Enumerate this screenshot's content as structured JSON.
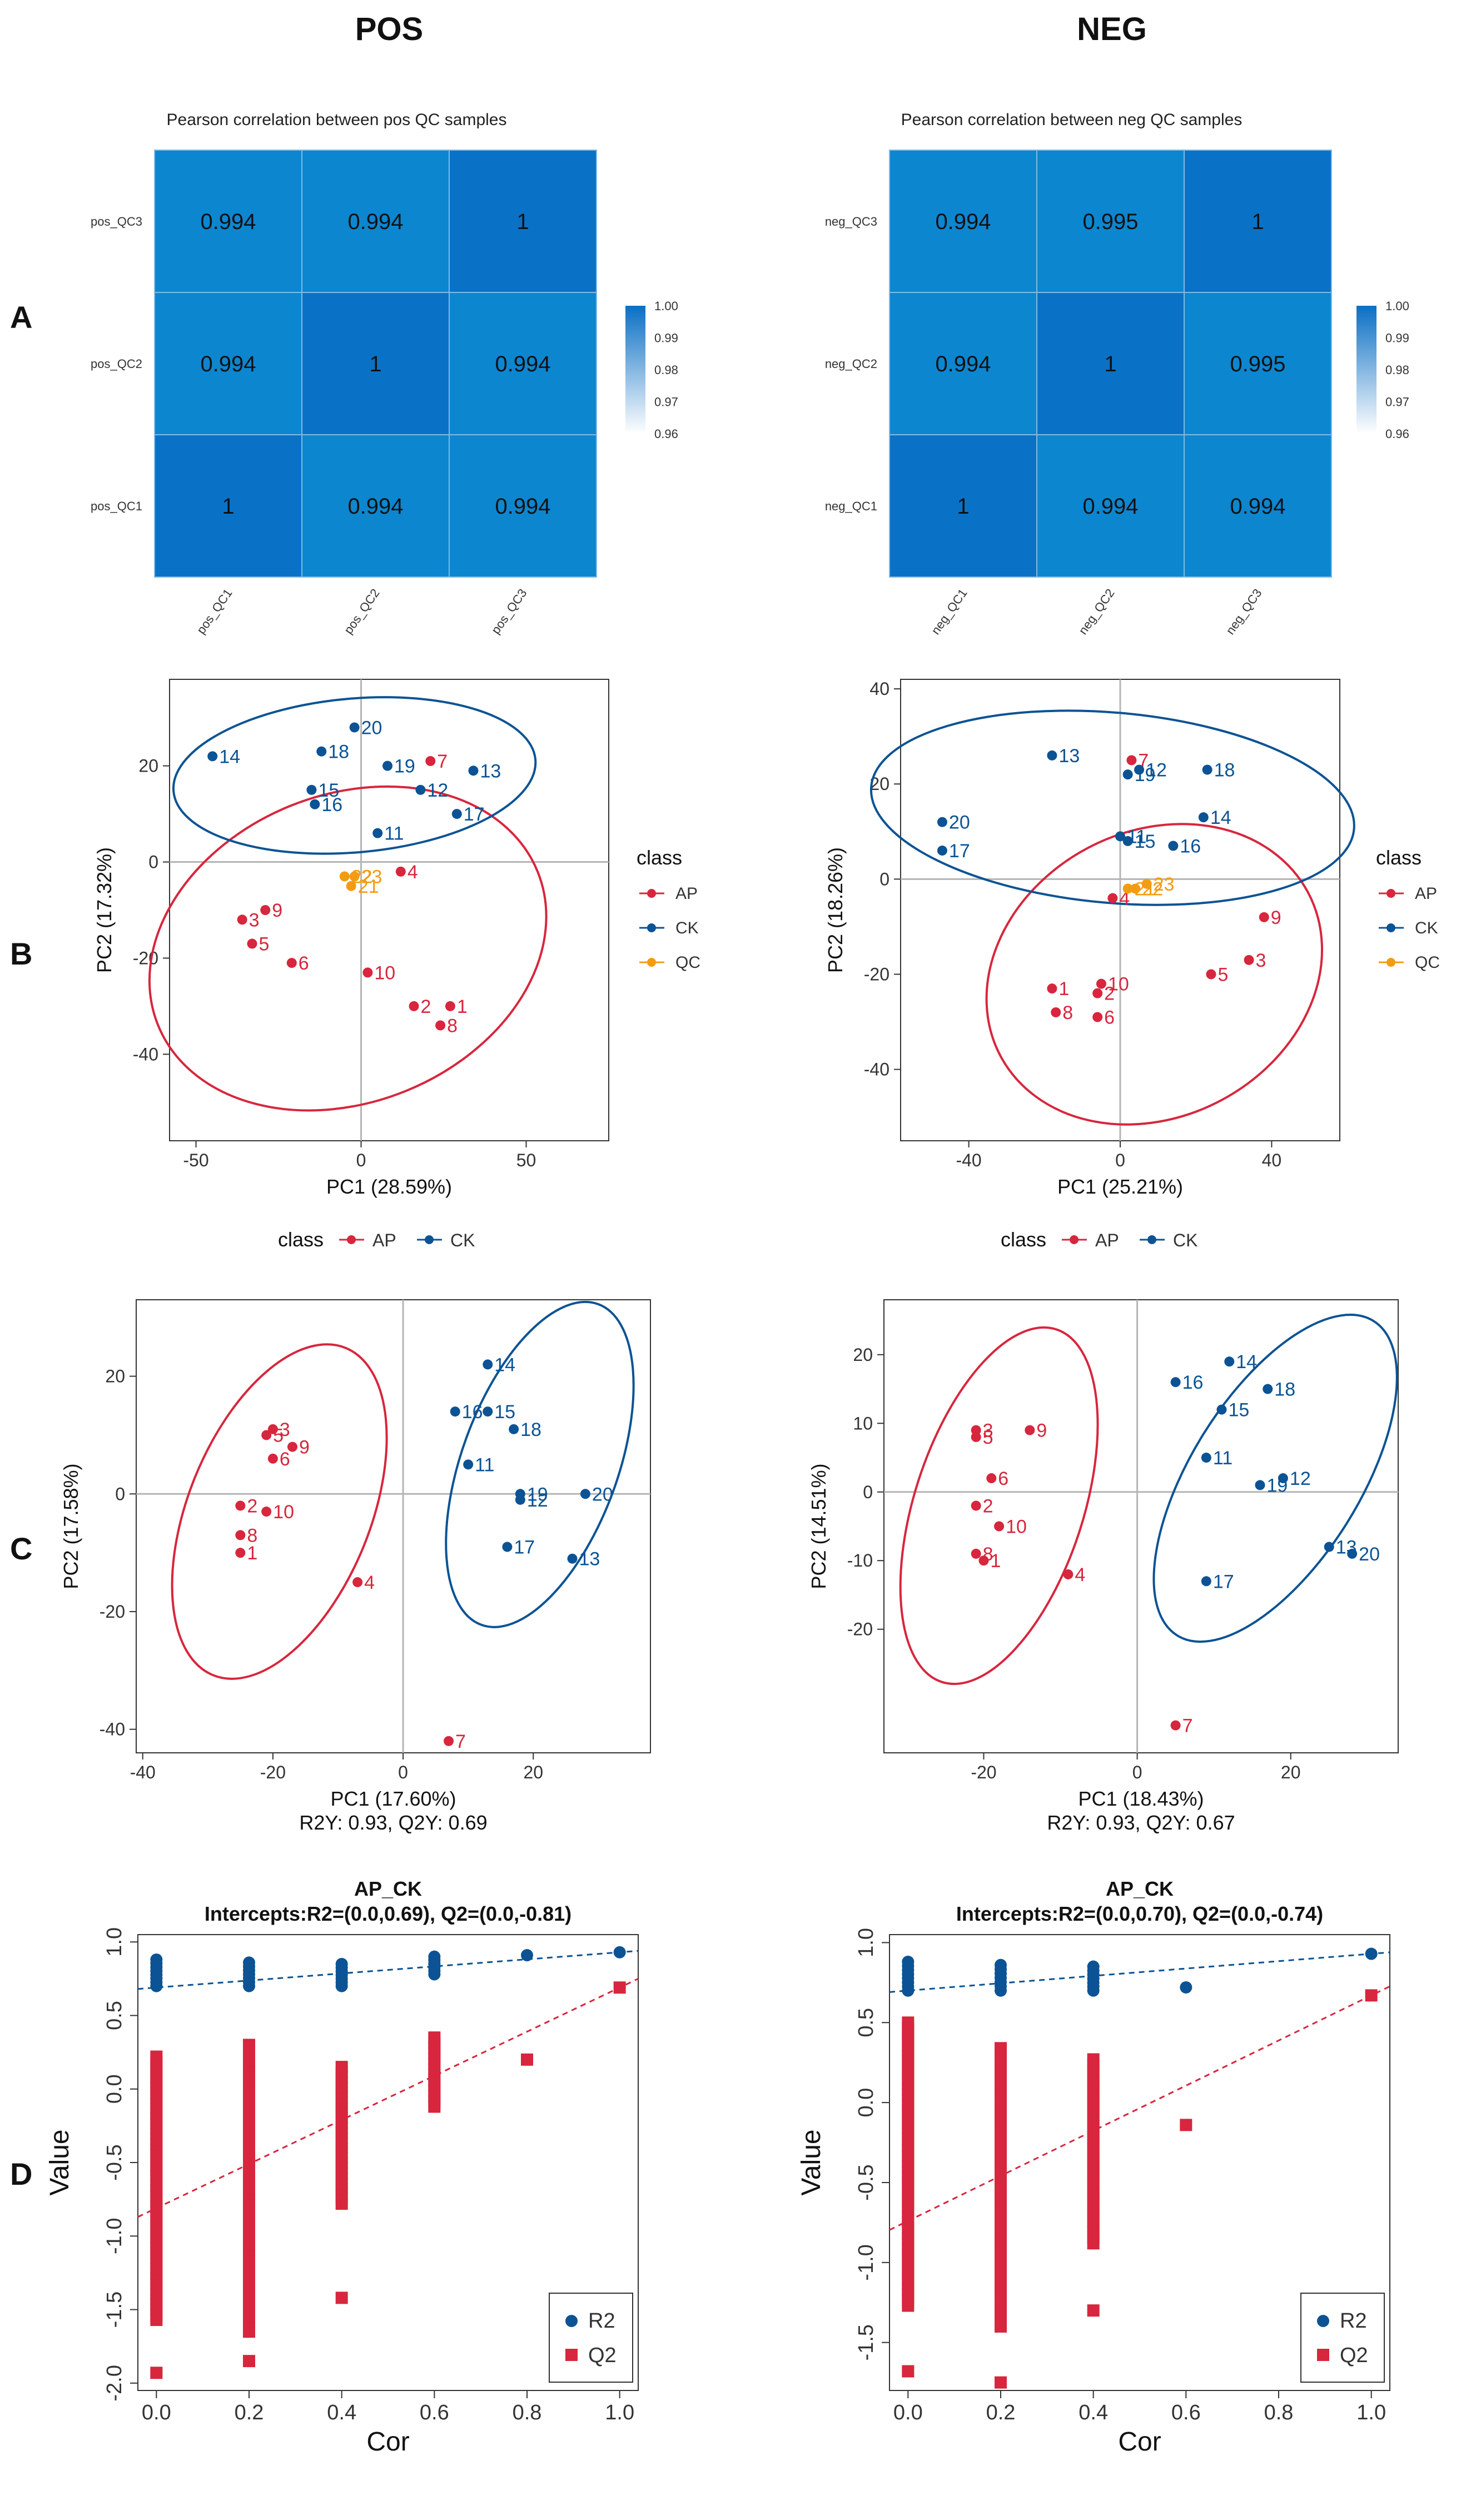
{
  "headers": {
    "pos": "POS",
    "neg": "NEG"
  },
  "panel_letters": {
    "a": "A",
    "b": "B",
    "c": "C",
    "d": "D"
  },
  "colors": {
    "ap": "#d7263d",
    "ck": "#0b5394",
    "qc": "#f39c12",
    "heat_low": "#ffffff",
    "heat_high": "#0a6fc4"
  },
  "chart_data": [
    {
      "type": "heatmap",
      "id": "pos_heatmap",
      "title": "Pearson correlation between pos QC samples",
      "rows": [
        "pos_QC3",
        "pos_QC2",
        "pos_QC1"
      ],
      "columns": [
        "pos_QC1",
        "pos_QC2",
        "pos_QC3"
      ],
      "values": [
        [
          "0.994",
          "0.994",
          "1"
        ],
        [
          "0.994",
          "1",
          "0.994"
        ],
        [
          "1",
          "0.994",
          "0.994"
        ]
      ],
      "legend_ticks": [
        "1.00",
        "0.99",
        "0.98",
        "0.97",
        "0.96"
      ],
      "legend_range": [
        0.96,
        1.0
      ]
    },
    {
      "type": "heatmap",
      "id": "neg_heatmap",
      "title": "Pearson correlation between neg QC samples",
      "rows": [
        "neg_QC3",
        "neg_QC2",
        "neg_QC1"
      ],
      "columns": [
        "neg_QC1",
        "neg_QC2",
        "neg_QC3"
      ],
      "values": [
        [
          "0.994",
          "0.995",
          "1"
        ],
        [
          "0.994",
          "1",
          "0.995"
        ],
        [
          "1",
          "0.994",
          "0.994"
        ]
      ],
      "legend_ticks": [
        "1.00",
        "0.99",
        "0.98",
        "0.97",
        "0.96"
      ],
      "legend_range": [
        0.96,
        1.0
      ]
    },
    {
      "type": "scatter",
      "id": "pos_pca",
      "xlabel": "PC1 (28.59%)",
      "ylabel": "PC2 (17.32%)",
      "xlim": [
        -58,
        75
      ],
      "ylim": [
        -58,
        38
      ],
      "xticks": [
        -50,
        0,
        50
      ],
      "yticks": [
        -40,
        -20,
        0,
        20
      ],
      "legend": {
        "title": "class",
        "entries": [
          "AP",
          "CK",
          "QC"
        ]
      },
      "series": [
        {
          "name": "AP",
          "points": [
            [
              27,
              -30,
              "1"
            ],
            [
              16,
              -30,
              "2"
            ],
            [
              -36,
              -12,
              "3"
            ],
            [
              12,
              -2,
              "4"
            ],
            [
              -33,
              -17,
              "5"
            ],
            [
              -21,
              -21,
              "6"
            ],
            [
              21,
              21,
              "7"
            ],
            [
              24,
              -34,
              "8"
            ],
            [
              -29,
              -10,
              "9"
            ],
            [
              2,
              -23,
              "10"
            ]
          ]
        },
        {
          "name": "CK",
          "points": [
            [
              5,
              6,
              "11"
            ],
            [
              18,
              15,
              "12"
            ],
            [
              34,
              19,
              "13"
            ],
            [
              -45,
              22,
              "14"
            ],
            [
              -15,
              15,
              "15"
            ],
            [
              -14,
              12,
              "16"
            ],
            [
              29,
              10,
              "17"
            ],
            [
              -12,
              23,
              "18"
            ],
            [
              8,
              20,
              "19"
            ],
            [
              -2,
              28,
              "20"
            ]
          ]
        },
        {
          "name": "QC",
          "points": [
            [
              -5,
              -3,
              "22"
            ],
            [
              -2,
              -3,
              "23"
            ],
            [
              -3,
              -5,
              "21"
            ]
          ]
        }
      ],
      "ellipses": [
        {
          "series": "AP",
          "cx": -4,
          "cy": -18,
          "rx": 62,
          "ry": 32,
          "angle": -22
        },
        {
          "series": "CK",
          "cx": -2,
          "cy": 18,
          "rx": 55,
          "ry": 16,
          "angle": -5
        }
      ]
    },
    {
      "type": "scatter",
      "id": "neg_pca",
      "xlabel": "PC1 (25.21%)",
      "ylabel": "PC2 (18.26%)",
      "xlim": [
        -58,
        58
      ],
      "ylim": [
        -55,
        42
      ],
      "xticks": [
        -40,
        0,
        40
      ],
      "yticks": [
        -40,
        -20,
        0,
        20,
        40
      ],
      "legend": {
        "title": "class",
        "entries": [
          "AP",
          "CK",
          "QC"
        ]
      },
      "series": [
        {
          "name": "AP",
          "points": [
            [
              -18,
              -23,
              "1"
            ],
            [
              -6,
              -24,
              "2"
            ],
            [
              34,
              -17,
              "3"
            ],
            [
              -2,
              -4,
              "4"
            ],
            [
              24,
              -20,
              "5"
            ],
            [
              -6,
              -29,
              "6"
            ],
            [
              3,
              25,
              "7"
            ],
            [
              -17,
              -28,
              "8"
            ],
            [
              38,
              -8,
              "9"
            ],
            [
              -5,
              -22,
              "10"
            ]
          ]
        },
        {
          "name": "CK",
          "points": [
            [
              0,
              9,
              "11"
            ],
            [
              5,
              23,
              "12"
            ],
            [
              -18,
              26,
              "13"
            ],
            [
              22,
              13,
              "14"
            ],
            [
              2,
              8,
              "15"
            ],
            [
              14,
              7,
              "16"
            ],
            [
              -47,
              6,
              "17"
            ],
            [
              23,
              23,
              "18"
            ],
            [
              2,
              22,
              "19"
            ],
            [
              -47,
              12,
              "20"
            ]
          ]
        },
        {
          "name": "QC",
          "points": [
            [
              2,
              -2,
              "21"
            ],
            [
              4,
              -2,
              "22"
            ],
            [
              7,
              -1,
              "23"
            ]
          ]
        }
      ],
      "ellipses": [
        {
          "series": "AP",
          "cx": 9,
          "cy": -20,
          "rx": 46,
          "ry": 30,
          "angle": -28
        },
        {
          "series": "CK",
          "cx": -2,
          "cy": 15,
          "rx": 64,
          "ry": 20,
          "angle": 5
        }
      ]
    },
    {
      "type": "scatter",
      "id": "pos_plsda",
      "xlabel": "PC1 (17.60%)",
      "subtitle": "R2Y: 0.93, Q2Y: 0.69",
      "ylabel": "PC2 (17.58%)",
      "xlim": [
        -41,
        38
      ],
      "ylim": [
        -44,
        33
      ],
      "xticks": [
        -40,
        -20,
        0,
        20
      ],
      "yticks": [
        -40,
        -20,
        0,
        20
      ],
      "legend": {
        "title": "class",
        "entries": [
          "AP",
          "CK"
        ]
      },
      "series": [
        {
          "name": "AP",
          "points": [
            [
              -25,
              -10,
              "1"
            ],
            [
              -25,
              -2,
              "2"
            ],
            [
              -20,
              11,
              "3"
            ],
            [
              -7,
              -15,
              "4"
            ],
            [
              -21,
              10,
              "5"
            ],
            [
              -20,
              6,
              "6"
            ],
            [
              7,
              -42,
              "7"
            ],
            [
              -25,
              -7,
              "8"
            ],
            [
              -17,
              8,
              "9"
            ],
            [
              -21,
              -3,
              "10"
            ]
          ]
        },
        {
          "name": "CK",
          "points": [
            [
              10,
              5,
              "11"
            ],
            [
              18,
              -1,
              "12"
            ],
            [
              26,
              -11,
              "13"
            ],
            [
              13,
              22,
              "14"
            ],
            [
              13,
              14,
              "15"
            ],
            [
              8,
              14,
              "16"
            ],
            [
              16,
              -9,
              "17"
            ],
            [
              17,
              11,
              "18"
            ],
            [
              18,
              0,
              "19"
            ],
            [
              28,
              0,
              "20"
            ]
          ]
        }
      ],
      "ellipses": [
        {
          "series": "AP",
          "cx": -19,
          "cy": -3,
          "rx": 14,
          "ry": 30,
          "angle": 22
        },
        {
          "series": "CK",
          "cx": 21,
          "cy": 5,
          "rx": 12,
          "ry": 29,
          "angle": 20
        }
      ]
    },
    {
      "type": "scatter",
      "id": "neg_plsda",
      "xlabel": "PC1 (18.43%)",
      "subtitle": "R2Y: 0.93, Q2Y: 0.67",
      "ylabel": "PC2 (14.51%)",
      "xlim": [
        -33,
        34
      ],
      "ylim": [
        -38,
        28
      ],
      "xticks": [
        -20,
        0,
        20
      ],
      "yticks": [
        -20,
        -10,
        0,
        10,
        20
      ],
      "legend": {
        "title": "class",
        "entries": [
          "AP",
          "CK"
        ]
      },
      "series": [
        {
          "name": "AP",
          "points": [
            [
              -20,
              -10,
              "1"
            ],
            [
              -21,
              -2,
              "2"
            ],
            [
              -21,
              9,
              "3"
            ],
            [
              -9,
              -12,
              "4"
            ],
            [
              -21,
              8,
              "5"
            ],
            [
              -19,
              2,
              "6"
            ],
            [
              5,
              -34,
              "7"
            ],
            [
              -21,
              -9,
              "8"
            ],
            [
              -14,
              9,
              "9"
            ],
            [
              -18,
              -5,
              "10"
            ]
          ]
        },
        {
          "name": "CK",
          "points": [
            [
              9,
              5,
              "11"
            ],
            [
              19,
              2,
              "12"
            ],
            [
              25,
              -8,
              "13"
            ],
            [
              12,
              19,
              "14"
            ],
            [
              11,
              12,
              "15"
            ],
            [
              5,
              16,
              "16"
            ],
            [
              9,
              -13,
              "17"
            ],
            [
              17,
              15,
              "18"
            ],
            [
              16,
              1,
              "19"
            ],
            [
              28,
              -9,
              "20"
            ]
          ]
        }
      ],
      "ellipses": [
        {
          "series": "AP",
          "cx": -18,
          "cy": -2,
          "rx": 11,
          "ry": 27,
          "angle": 18
        },
        {
          "series": "CK",
          "cx": 18,
          "cy": 2,
          "rx": 11,
          "ry": 27,
          "angle": 32
        }
      ]
    },
    {
      "type": "scatter",
      "id": "pos_permutation",
      "title": "AP_CK",
      "subtitle": "Intercepts:R2=(0.0,0.69), Q2=(0.0,-0.81)",
      "xlabel": "Cor",
      "ylabel": "Value",
      "xlim": [
        -0.04,
        1.04
      ],
      "ylim": [
        -2.05,
        1.05
      ],
      "xticks": [
        "0.0",
        "0.2",
        "0.4",
        "0.6",
        "0.8",
        "1.0"
      ],
      "yticks": [
        "-2.0",
        "-1.5",
        "-1.0",
        "-0.5",
        "0.0",
        "0.5",
        "1.0"
      ],
      "legend": {
        "entries": [
          "R2",
          "Q2"
        ]
      },
      "r2_line": {
        "x": [
          0,
          1.0
        ],
        "y": [
          0.69,
          0.93
        ]
      },
      "q2_line": {
        "x": [
          0,
          1.0
        ],
        "y": [
          -0.81,
          0.69
        ]
      },
      "series": [
        {
          "name": "R2",
          "x_groups": [
            0.0,
            0.2,
            0.4,
            0.6
          ],
          "ranges": [
            [
              0.7,
              0.88
            ],
            [
              0.7,
              0.86
            ],
            [
              0.7,
              0.85
            ],
            [
              0.78,
              0.9
            ]
          ],
          "extra": [
            [
              0.8,
              0.91
            ],
            [
              1.0,
              0.93
            ]
          ]
        },
        {
          "name": "Q2",
          "x_groups": [
            0.0,
            0.2,
            0.4,
            0.6
          ],
          "ranges": [
            [
              -1.57,
              0.22
            ],
            [
              -1.65,
              0.3
            ],
            [
              -0.78,
              0.15
            ],
            [
              -0.12,
              0.35
            ]
          ],
          "extra": [
            [
              0.0,
              -1.93
            ],
            [
              0.2,
              -1.85
            ],
            [
              0.4,
              -1.42
            ],
            [
              0.8,
              0.2
            ],
            [
              1.0,
              0.69
            ]
          ]
        }
      ]
    },
    {
      "type": "scatter",
      "id": "neg_permutation",
      "title": "AP_CK",
      "subtitle": "Intercepts:R2=(0.0,0.70), Q2=(0.0,-0.74)",
      "xlabel": "Cor",
      "ylabel": "Value",
      "xlim": [
        -0.04,
        1.04
      ],
      "ylim": [
        -1.8,
        1.05
      ],
      "xticks": [
        "0.0",
        "0.2",
        "0.4",
        "0.6",
        "0.8",
        "1.0"
      ],
      "yticks": [
        "-1.5",
        "-1.0",
        "-0.5",
        "0.0",
        "0.5",
        "1.0"
      ],
      "legend": {
        "entries": [
          "R2",
          "Q2"
        ]
      },
      "r2_line": {
        "x": [
          0,
          1.0
        ],
        "y": [
          0.7,
          0.93
        ]
      },
      "q2_line": {
        "x": [
          0,
          1.0
        ],
        "y": [
          -0.74,
          0.67
        ]
      },
      "series": [
        {
          "name": "R2",
          "x_groups": [
            0.0,
            0.2,
            0.4
          ],
          "ranges": [
            [
              0.7,
              0.88
            ],
            [
              0.7,
              0.86
            ],
            [
              0.7,
              0.85
            ]
          ],
          "extra": [
            [
              0.6,
              0.72
            ],
            [
              1.0,
              0.93
            ]
          ]
        },
        {
          "name": "Q2",
          "x_groups": [
            0.0,
            0.2,
            0.4
          ],
          "ranges": [
            [
              -1.27,
              0.5
            ],
            [
              -1.4,
              0.34
            ],
            [
              -0.88,
              0.27
            ]
          ],
          "extra": [
            [
              0.0,
              -1.68
            ],
            [
              0.2,
              -1.75
            ],
            [
              0.4,
              -1.3
            ],
            [
              0.6,
              -0.14
            ],
            [
              1.0,
              0.67
            ]
          ]
        }
      ]
    }
  ]
}
